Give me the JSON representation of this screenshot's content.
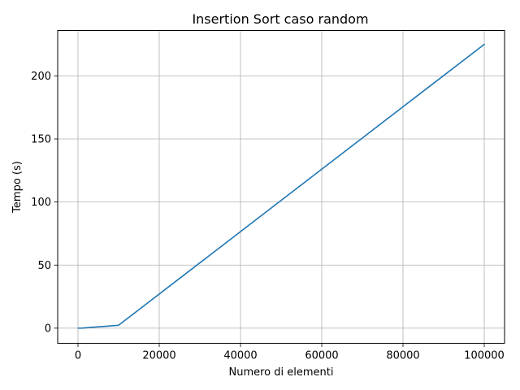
{
  "chart_data": {
    "type": "line",
    "title": "Insertion Sort caso random",
    "xlabel": "Numero di elementi",
    "ylabel": "Tempo (s)",
    "xlim": [
      -5000,
      105000
    ],
    "ylim": [
      -12,
      236
    ],
    "grid": true,
    "xticks": [
      0,
      20000,
      40000,
      60000,
      80000,
      100000
    ],
    "xtick_labels": [
      "0",
      "20000",
      "40000",
      "60000",
      "80000",
      "100000"
    ],
    "yticks": [
      0,
      50,
      100,
      150,
      200
    ],
    "ytick_labels": [
      "0",
      "50",
      "100",
      "150",
      "200"
    ],
    "series": [
      {
        "color": "#1f77b4",
        "x": [
          100,
          1000,
          10000,
          100000
        ],
        "y": [
          0.0,
          0.02,
          2.3,
          225.0
        ]
      }
    ]
  }
}
